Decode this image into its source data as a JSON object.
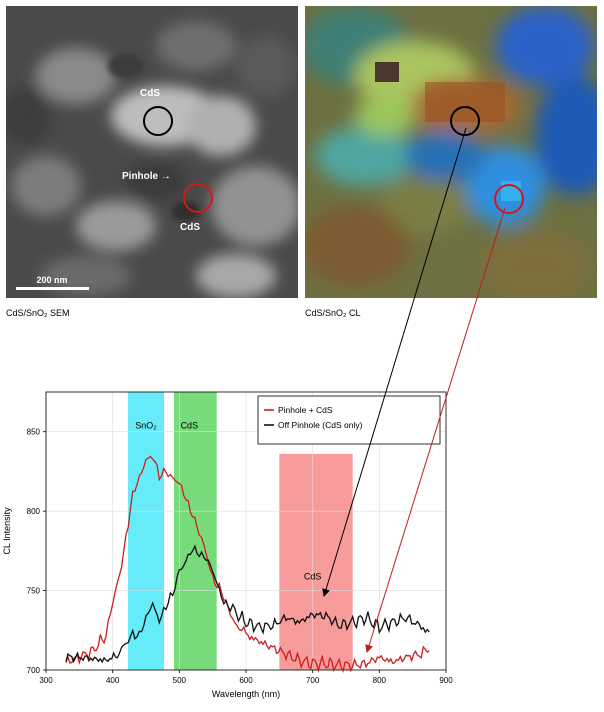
{
  "sem_panel": {
    "caption": "CdS/SnO₂ SEM",
    "label_top": "CdS",
    "label_pinhole": "Pinhole →",
    "label_bottom": "CdS",
    "scale_bar": "200 nm"
  },
  "cl_panel": {
    "caption": "CdS/SnO₂ CL"
  },
  "colors": {
    "pinhole_series": "#cc1f1f",
    "off_series": "#111111",
    "sno2_band": "#33e5f5",
    "cds_green_band": "#49cf4f",
    "cds_red_band": "#f47a7a"
  },
  "chart_data": {
    "type": "line",
    "ylabel": "CL Intensity",
    "xlabel": "Wavelength (nm)",
    "xlim": [
      300,
      900
    ],
    "ylim": [
      700,
      875
    ],
    "x_ticks": [
      "300",
      "400",
      "500",
      "600",
      "700",
      "800",
      "900"
    ],
    "y_ticks": [
      "700",
      "750",
      "800",
      "850"
    ],
    "grid": true,
    "legend_position": "top-right",
    "bands": [
      {
        "label": "SnO₂",
        "from": 423,
        "to": 477,
        "color": "#33e5f5"
      },
      {
        "label": "CdS",
        "from": 492,
        "to": 556,
        "color": "#49cf4f"
      },
      {
        "label": "CdS",
        "from": 650,
        "to": 760,
        "color": "#f47a7a"
      }
    ],
    "series": [
      {
        "name": "Pinhole + CdS",
        "x": [
          330,
          350,
          370,
          390,
          400,
          410,
          420,
          430,
          440,
          450,
          460,
          470,
          480,
          490,
          500,
          510,
          520,
          530,
          540,
          550,
          560,
          570,
          580,
          590,
          600,
          620,
          640,
          660,
          680,
          700,
          720,
          740,
          760,
          780,
          800,
          820,
          840,
          860,
          875
        ],
        "values": [
          705,
          708,
          712,
          722,
          740,
          760,
          785,
          808,
          820,
          835,
          834,
          820,
          827,
          822,
          815,
          808,
          800,
          785,
          772,
          760,
          752,
          740,
          733,
          728,
          722,
          718,
          714,
          710,
          706,
          704,
          704,
          703,
          703,
          704,
          708,
          705,
          708,
          710,
          712
        ]
      },
      {
        "name": "Off Pinhole (CdS only)",
        "x": [
          330,
          350,
          370,
          390,
          410,
          420,
          430,
          440,
          450,
          460,
          470,
          480,
          490,
          500,
          510,
          520,
          530,
          540,
          550,
          560,
          570,
          580,
          600,
          620,
          640,
          660,
          680,
          700,
          720,
          740,
          760,
          780,
          800,
          820,
          840,
          860,
          875
        ],
        "values": [
          708,
          708,
          707,
          706,
          710,
          715,
          725,
          722,
          730,
          743,
          733,
          738,
          747,
          765,
          768,
          774,
          775,
          772,
          760,
          750,
          743,
          738,
          730,
          727,
          728,
          733,
          730,
          735,
          734,
          728,
          730,
          733,
          727,
          730,
          733,
          728,
          724
        ]
      }
    ]
  }
}
